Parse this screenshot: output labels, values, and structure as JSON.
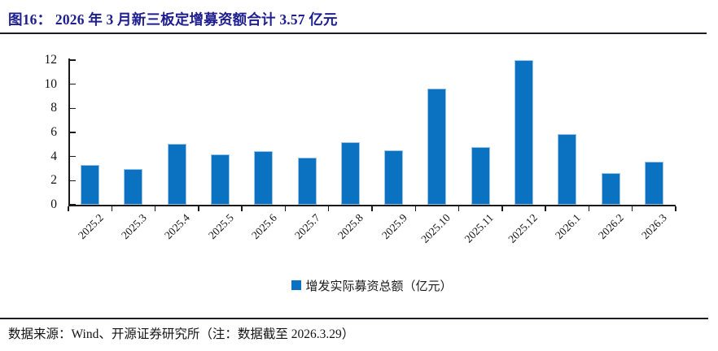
{
  "header": {
    "title": "图16：  2026 年 3 月新三板定增募资额合计 3.57 亿元"
  },
  "chart_data": {
    "type": "bar",
    "title": "2026 年 3 月新三板定增募资额合计 3.57 亿元",
    "categories": [
      "2025.2",
      "2025.3",
      "2025.4",
      "2025.5",
      "2025.6",
      "2025.7",
      "2025.8",
      "2025.9",
      "2025.10",
      "2025.11",
      "2025.12",
      "2026.1",
      "2026.2",
      "2026.3"
    ],
    "series": [
      {
        "name": "增发实际募资总额（亿元）",
        "values": [
          3.3,
          2.95,
          5.05,
          4.15,
          4.45,
          3.9,
          5.2,
          4.5,
          9.65,
          4.8,
          12.0,
          5.85,
          2.6,
          3.57
        ]
      }
    ],
    "xlabel": "",
    "ylabel": "",
    "ylim": [
      0,
      12
    ],
    "yticks": [
      0,
      2,
      4,
      6,
      8,
      10,
      12
    ],
    "grid": false,
    "legend_position": "bottom",
    "bar_color": "#0b71c1",
    "bar_edge_color": "#9dc3e6"
  },
  "legend": {
    "label": "增发实际募资总额（亿元）",
    "marker": "square-icon",
    "marker_color": "#0b71c1"
  },
  "footer": {
    "source": "数据来源：Wind、开源证券研究所（注：数据截至 2026.3.29）"
  }
}
